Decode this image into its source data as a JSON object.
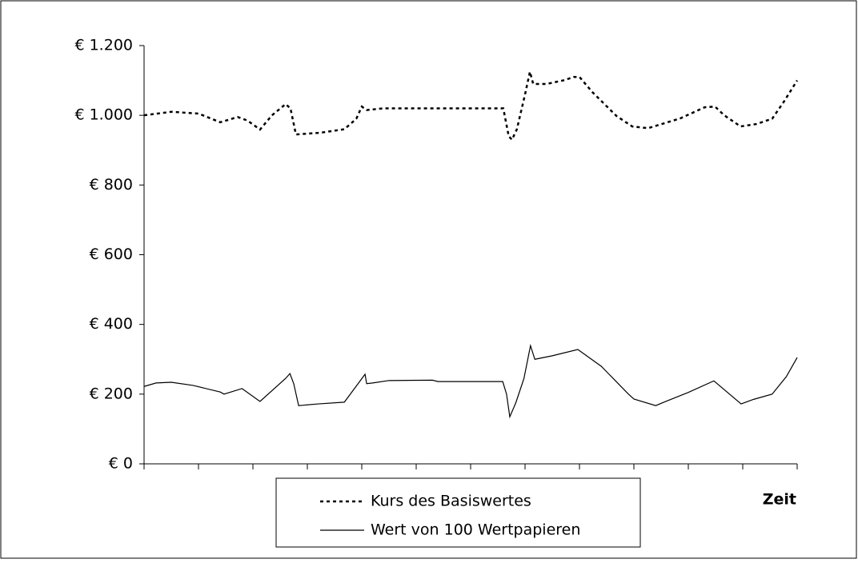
{
  "chart_data": {
    "type": "line",
    "x_label": "Zeit",
    "xlim": [
      0,
      120
    ],
    "xticks": [
      0,
      10,
      20,
      30,
      40,
      50,
      60,
      70,
      80,
      90,
      100,
      110,
      120
    ],
    "ylim": [
      0,
      1200
    ],
    "yticks": [
      {
        "value": 0,
        "label": "€ 0"
      },
      {
        "value": 200,
        "label": "€ 200"
      },
      {
        "value": 400,
        "label": "€ 400"
      },
      {
        "value": 600,
        "label": "€ 600"
      },
      {
        "value": 800,
        "label": "€ 800"
      },
      {
        "value": 1000,
        "label": "€ 1.000"
      },
      {
        "value": 1200,
        "label": "€ 1.200"
      }
    ],
    "grid": false,
    "series": [
      {
        "name": "Kurs des Basiswertes",
        "color": "#000000",
        "line_style": "dotted",
        "x": [
          0,
          5,
          10,
          14,
          17.2,
          19,
          21.3,
          23.5,
          26,
          26.9,
          27.9,
          32.4,
          36.8,
          39,
          40,
          40.9,
          44,
          57,
          66,
          67,
          67.6,
          68.5,
          70,
          70.9,
          71.5,
          74,
          77,
          79,
          80,
          82.4,
          86.8,
          89.7,
          92.6,
          98.5,
          103,
          104.9,
          106.6,
          109.6,
          112.5,
          115.4,
          117.6,
          120
        ],
        "values": [
          1000,
          1010,
          1005,
          980,
          995,
          985,
          959,
          1000,
          1032,
          1020,
          945,
          950,
          960,
          990,
          1025,
          1015,
          1020,
          1020,
          1020,
          940,
          930,
          960,
          1060,
          1125,
          1090,
          1090,
          1100,
          1110,
          1110,
          1066,
          998,
          968,
          963,
          991,
          1023,
          1025,
          1000,
          968,
          975,
          990,
          1040,
          1100
        ]
      },
      {
        "name": "Wert von 100 Wertpapieren",
        "color": "#000000",
        "line_style": "solid",
        "x": [
          0,
          2.2,
          5,
          9,
          14,
          14.7,
          18,
          21.3,
          26,
          26.8,
          27.5,
          28.4,
          32,
          36.8,
          40.6,
          40.9,
          42,
          45,
          53,
          54,
          65.9,
          66.6,
          67.2,
          68.3,
          69.8,
          71,
          71.8,
          75,
          79.7,
          84,
          89,
          90,
          94,
          96,
          100,
          104.7,
          109.7,
          112,
          115.4,
          118,
          120
        ],
        "values": [
          222,
          232,
          234,
          225,
          206,
          200,
          216,
          179,
          245,
          259,
          230,
          167,
          172,
          177,
          257,
          230,
          232,
          239,
          240,
          236,
          236,
          200,
          135,
          175,
          245,
          339,
          300,
          310,
          328,
          280,
          200,
          186,
          167,
          180,
          205,
          238,
          172,
          185,
          200,
          250,
          305
        ]
      }
    ]
  }
}
